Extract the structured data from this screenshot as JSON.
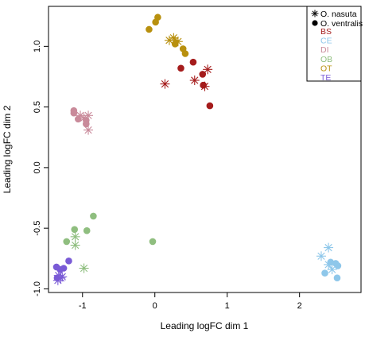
{
  "chart_data": {
    "type": "scatter",
    "title": "",
    "xlabel": "Leading logFC dim 1",
    "ylabel": "Leading logFC dim 2",
    "xlim": [
      -1.47,
      2.85
    ],
    "ylim": [
      -1.03,
      1.33
    ],
    "xticks": [
      {
        "value": -1,
        "label": "-1"
      },
      {
        "value": 0,
        "label": "0"
      },
      {
        "value": 1,
        "label": "1"
      },
      {
        "value": 2,
        "label": "2"
      }
    ],
    "yticks": [
      {
        "value": -1.0,
        "label": "-1.0"
      },
      {
        "value": -0.5,
        "label": "-0.5"
      },
      {
        "value": 0.0,
        "label": "0.0"
      },
      {
        "value": 0.5,
        "label": "0.5"
      },
      {
        "value": 1.0,
        "label": "1.0"
      }
    ],
    "grid": false,
    "legend_position": "top-right",
    "legend_shapes": [
      {
        "label": "O. nasuta",
        "marker": "asterisk"
      },
      {
        "label": "O. ventralis",
        "marker": "circle"
      }
    ],
    "series": [
      {
        "name": "BS",
        "color": "#a51c1c",
        "points": [
          {
            "x": 0.36,
            "y": 0.82,
            "m": "circle"
          },
          {
            "x": 0.53,
            "y": 0.87,
            "m": "circle"
          },
          {
            "x": 0.66,
            "y": 0.77,
            "m": "circle"
          },
          {
            "x": 0.67,
            "y": 0.68,
            "m": "circle"
          },
          {
            "x": 0.76,
            "y": 0.51,
            "m": "circle"
          },
          {
            "x": 0.14,
            "y": 0.69,
            "m": "asterisk"
          },
          {
            "x": 0.55,
            "y": 0.72,
            "m": "asterisk"
          },
          {
            "x": 0.73,
            "y": 0.81,
            "m": "asterisk"
          },
          {
            "x": 0.69,
            "y": 0.67,
            "m": "asterisk"
          }
        ]
      },
      {
        "name": "CE",
        "color": "#8ec7ea",
        "points": [
          {
            "x": 2.43,
            "y": -0.78,
            "m": "circle"
          },
          {
            "x": 2.5,
            "y": -0.79,
            "m": "circle"
          },
          {
            "x": 2.53,
            "y": -0.81,
            "m": "circle"
          },
          {
            "x": 2.35,
            "y": -0.87,
            "m": "circle"
          },
          {
            "x": 2.52,
            "y": -0.91,
            "m": "circle"
          },
          {
            "x": 2.4,
            "y": -0.66,
            "m": "asterisk"
          },
          {
            "x": 2.3,
            "y": -0.73,
            "m": "asterisk"
          },
          {
            "x": 2.4,
            "y": -0.8,
            "m": "asterisk"
          },
          {
            "x": 2.45,
            "y": -0.84,
            "m": "asterisk"
          }
        ]
      },
      {
        "name": "DI",
        "color": "#c98a9a",
        "points": [
          {
            "x": -1.12,
            "y": 0.47,
            "m": "circle"
          },
          {
            "x": -1.12,
            "y": 0.45,
            "m": "circle"
          },
          {
            "x": -1.06,
            "y": 0.4,
            "m": "circle"
          },
          {
            "x": -0.95,
            "y": 0.39,
            "m": "circle"
          },
          {
            "x": -0.95,
            "y": 0.36,
            "m": "circle"
          },
          {
            "x": -1.03,
            "y": 0.43,
            "m": "asterisk"
          },
          {
            "x": -0.92,
            "y": 0.43,
            "m": "asterisk"
          },
          {
            "x": -0.98,
            "y": 0.41,
            "m": "asterisk"
          },
          {
            "x": -0.92,
            "y": 0.31,
            "m": "asterisk"
          }
        ]
      },
      {
        "name": "OB",
        "color": "#8fbe7f",
        "points": [
          {
            "x": -0.85,
            "y": -0.4,
            "m": "circle"
          },
          {
            "x": -1.11,
            "y": -0.51,
            "m": "circle"
          },
          {
            "x": -0.94,
            "y": -0.52,
            "m": "circle"
          },
          {
            "x": -1.22,
            "y": -0.61,
            "m": "circle"
          },
          {
            "x": -0.03,
            "y": -0.61,
            "m": "circle"
          },
          {
            "x": -1.1,
            "y": -0.57,
            "m": "asterisk"
          },
          {
            "x": -1.1,
            "y": -0.64,
            "m": "asterisk"
          },
          {
            "x": -0.98,
            "y": -0.83,
            "m": "asterisk"
          }
        ]
      },
      {
        "name": "OT",
        "color": "#b8900e",
        "points": [
          {
            "x": 0.04,
            "y": 1.24,
            "m": "circle"
          },
          {
            "x": 0.01,
            "y": 1.2,
            "m": "circle"
          },
          {
            "x": -0.08,
            "y": 1.14,
            "m": "circle"
          },
          {
            "x": 0.28,
            "y": 1.02,
            "m": "circle"
          },
          {
            "x": 0.39,
            "y": 0.98,
            "m": "circle"
          },
          {
            "x": 0.42,
            "y": 0.94,
            "m": "circle"
          },
          {
            "x": 0.2,
            "y": 1.05,
            "m": "asterisk"
          },
          {
            "x": 0.26,
            "y": 1.07,
            "m": "asterisk"
          },
          {
            "x": 0.28,
            "y": 1.05,
            "m": "asterisk"
          },
          {
            "x": 0.32,
            "y": 1.04,
            "m": "asterisk"
          }
        ]
      },
      {
        "name": "TE",
        "color": "#7a5bd6",
        "points": [
          {
            "x": -1.36,
            "y": -0.82,
            "m": "circle"
          },
          {
            "x": -1.26,
            "y": -0.83,
            "m": "circle"
          },
          {
            "x": -1.31,
            "y": -0.84,
            "m": "circle"
          },
          {
            "x": -1.19,
            "y": -0.77,
            "m": "circle"
          },
          {
            "x": -1.35,
            "y": -0.91,
            "m": "circle"
          },
          {
            "x": -1.33,
            "y": -0.89,
            "m": "asterisk"
          },
          {
            "x": -1.3,
            "y": -0.91,
            "m": "asterisk"
          },
          {
            "x": -1.34,
            "y": -0.93,
            "m": "asterisk"
          },
          {
            "x": -1.28,
            "y": -0.9,
            "m": "asterisk"
          }
        ]
      }
    ]
  }
}
